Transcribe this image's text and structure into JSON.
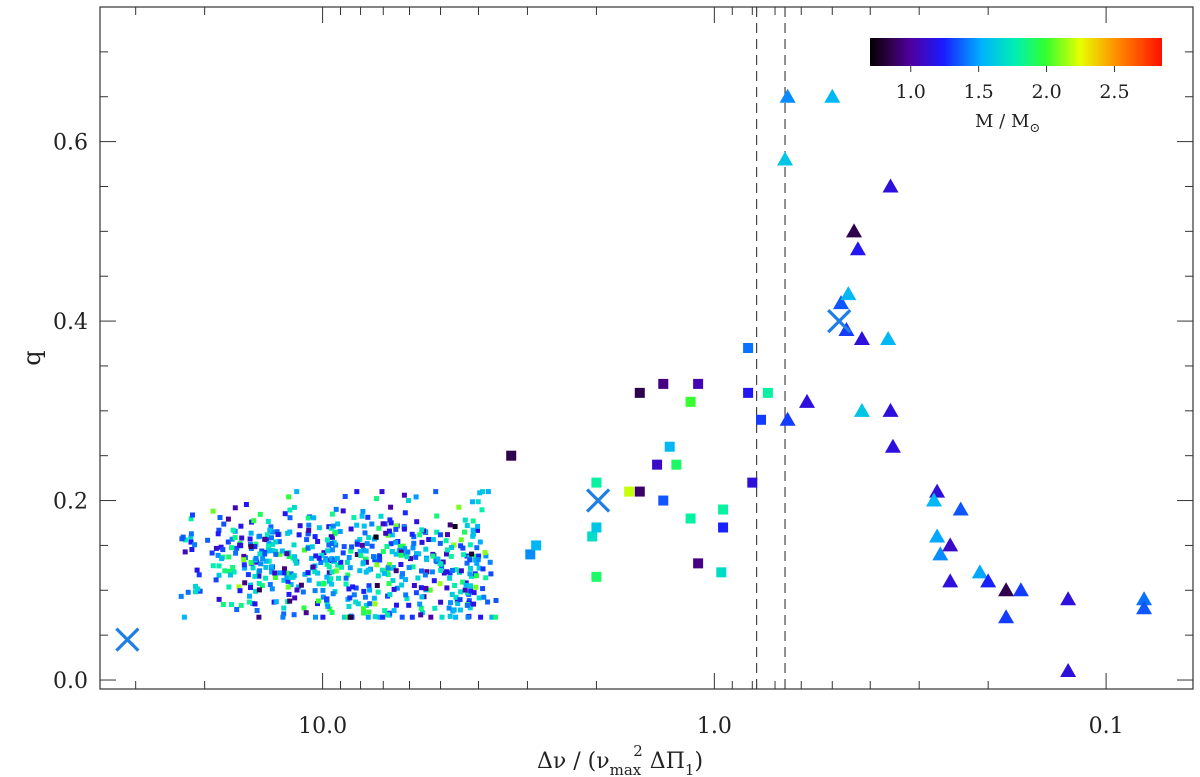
{
  "chart_data": {
    "type": "scatter",
    "title": "",
    "xlabel": "Δν / (ν",
    "xlabel_sub1": "max",
    "xlabel_sup": "2",
    "xlabel_mid": " ΔΠ",
    "xlabel_sub2": "1",
    "xlabel_end": ")",
    "ylabel": "q",
    "x_scale": "log",
    "x_reversed": true,
    "xlim": [
      37.0,
      0.06
    ],
    "ylim": [
      -0.01,
      0.75
    ],
    "grid": false,
    "x_tick_labels": [
      {
        "value": 10.0,
        "label": "10.0"
      },
      {
        "value": 1.0,
        "label": "1.0"
      },
      {
        "value": 0.1,
        "label": "0.1"
      }
    ],
    "y_tick_labels": [
      {
        "value": 0.0,
        "label": "0.0"
      },
      {
        "value": 0.2,
        "label": "0.2"
      },
      {
        "value": 0.4,
        "label": "0.4"
      },
      {
        "value": 0.6,
        "label": "0.6"
      }
    ],
    "vertical_dashed_lines": [
      0.78,
      0.66
    ],
    "colorbar": {
      "label": "M / M",
      "label_sub": "⊙",
      "min": 0.7,
      "max": 2.85,
      "ticks": [
        {
          "value": 1.0,
          "label": "1.0"
        },
        {
          "value": 1.5,
          "label": "1.5"
        },
        {
          "value": 2.0,
          "label": "2.0"
        },
        {
          "value": 2.5,
          "label": "2.5"
        }
      ]
    },
    "series": [
      {
        "name": "red-clump-squares-large",
        "marker": "square",
        "points": [
          {
            "x": 3.3,
            "y": 0.25,
            "m": 0.85
          },
          {
            "x": 2.95,
            "y": 0.14,
            "m": 1.45
          },
          {
            "x": 2.85,
            "y": 0.15,
            "m": 1.55
          },
          {
            "x": 2.05,
            "y": 0.16,
            "m": 1.7
          },
          {
            "x": 2.0,
            "y": 0.17,
            "m": 1.6
          },
          {
            "x": 2.0,
            "y": 0.22,
            "m": 1.8
          },
          {
            "x": 2.0,
            "y": 0.115,
            "m": 1.9
          },
          {
            "x": 1.65,
            "y": 0.21,
            "m": 2.2
          },
          {
            "x": 1.55,
            "y": 0.32,
            "m": 0.85
          },
          {
            "x": 1.55,
            "y": 0.21,
            "m": 0.9
          },
          {
            "x": 1.35,
            "y": 0.33,
            "m": 0.95
          },
          {
            "x": 1.4,
            "y": 0.24,
            "m": 1.1
          },
          {
            "x": 1.35,
            "y": 0.2,
            "m": 1.35
          },
          {
            "x": 1.3,
            "y": 0.26,
            "m": 1.55
          },
          {
            "x": 1.25,
            "y": 0.24,
            "m": 1.9
          },
          {
            "x": 1.15,
            "y": 0.31,
            "m": 2.0
          },
          {
            "x": 1.15,
            "y": 0.18,
            "m": 1.8
          },
          {
            "x": 1.1,
            "y": 0.33,
            "m": 1.05
          },
          {
            "x": 1.1,
            "y": 0.13,
            "m": 0.95
          },
          {
            "x": 0.95,
            "y": 0.19,
            "m": 1.8
          },
          {
            "x": 0.96,
            "y": 0.12,
            "m": 1.7
          },
          {
            "x": 0.95,
            "y": 0.17,
            "m": 1.25
          },
          {
            "x": 0.82,
            "y": 0.37,
            "m": 1.4
          },
          {
            "x": 0.82,
            "y": 0.32,
            "m": 1.2
          },
          {
            "x": 0.8,
            "y": 0.22,
            "m": 1.15
          },
          {
            "x": 0.76,
            "y": 0.29,
            "m": 1.3
          },
          {
            "x": 0.73,
            "y": 0.32,
            "m": 1.8
          }
        ]
      },
      {
        "name": "rgb-triangles",
        "marker": "triangle",
        "points": [
          {
            "x": 0.65,
            "y": 0.65,
            "m": 1.45
          },
          {
            "x": 0.5,
            "y": 0.65,
            "m": 1.55
          },
          {
            "x": 0.66,
            "y": 0.58,
            "m": 1.6
          },
          {
            "x": 0.65,
            "y": 0.29,
            "m": 1.3
          },
          {
            "x": 0.58,
            "y": 0.31,
            "m": 1.15
          },
          {
            "x": 0.475,
            "y": 0.42,
            "m": 1.35
          },
          {
            "x": 0.455,
            "y": 0.43,
            "m": 1.55
          },
          {
            "x": 0.46,
            "y": 0.39,
            "m": 1.3
          },
          {
            "x": 0.44,
            "y": 0.5,
            "m": 0.85
          },
          {
            "x": 0.43,
            "y": 0.48,
            "m": 1.2
          },
          {
            "x": 0.42,
            "y": 0.38,
            "m": 1.15
          },
          {
            "x": 0.42,
            "y": 0.3,
            "m": 1.6
          },
          {
            "x": 0.355,
            "y": 0.55,
            "m": 1.15
          },
          {
            "x": 0.36,
            "y": 0.38,
            "m": 1.55
          },
          {
            "x": 0.355,
            "y": 0.3,
            "m": 1.15
          },
          {
            "x": 0.35,
            "y": 0.26,
            "m": 1.15
          },
          {
            "x": 0.27,
            "y": 0.21,
            "m": 1.15
          },
          {
            "x": 0.275,
            "y": 0.2,
            "m": 1.55
          },
          {
            "x": 0.27,
            "y": 0.16,
            "m": 1.5
          },
          {
            "x": 0.265,
            "y": 0.14,
            "m": 1.45
          },
          {
            "x": 0.25,
            "y": 0.15,
            "m": 1.1
          },
          {
            "x": 0.25,
            "y": 0.11,
            "m": 1.15
          },
          {
            "x": 0.235,
            "y": 0.19,
            "m": 1.35
          },
          {
            "x": 0.21,
            "y": 0.12,
            "m": 1.5
          },
          {
            "x": 0.2,
            "y": 0.11,
            "m": 1.25
          },
          {
            "x": 0.18,
            "y": 0.1,
            "m": 0.85
          },
          {
            "x": 0.18,
            "y": 0.07,
            "m": 1.3
          },
          {
            "x": 0.165,
            "y": 0.1,
            "m": 1.3
          },
          {
            "x": 0.125,
            "y": 0.09,
            "m": 1.15
          },
          {
            "x": 0.125,
            "y": 0.01,
            "m": 1.15
          },
          {
            "x": 0.08,
            "y": 0.09,
            "m": 1.4
          },
          {
            "x": 0.08,
            "y": 0.08,
            "m": 1.35
          }
        ]
      },
      {
        "name": "model-crosses",
        "marker": "cross",
        "color": "#1e7ee6",
        "points": [
          {
            "x": 31.5,
            "y": 0.045
          },
          {
            "x": 1.98,
            "y": 0.2
          },
          {
            "x": 0.48,
            "y": 0.4
          }
        ]
      },
      {
        "name": "dense-cloud-small-squares",
        "marker": "small-square",
        "count": 620,
        "x_range": [
          23.0,
          3.6
        ],
        "y_center": 0.13,
        "y_spread": 0.035
      }
    ]
  }
}
